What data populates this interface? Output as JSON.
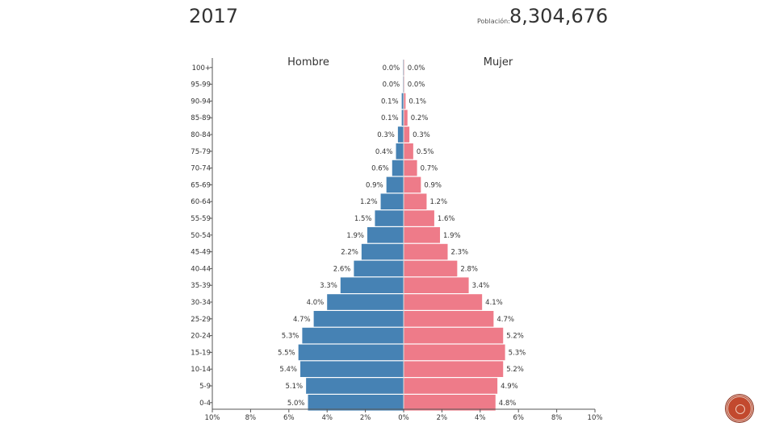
{
  "header": {
    "year": "2017",
    "population_label": "Población:",
    "population_value": "8,304,676"
  },
  "colors": {
    "male": "#4682b4",
    "female": "#ee7b89",
    "axis": "#555555",
    "text": "#333333",
    "badge": "#c2492e"
  },
  "badge": {
    "icon": "logo-seal-icon"
  },
  "chart_data": {
    "type": "bar",
    "subtype": "population-pyramid",
    "left_label": "Hombre",
    "right_label": "Mujer",
    "categories": [
      "100+",
      "95-99",
      "90-94",
      "85-89",
      "80-84",
      "75-79",
      "70-74",
      "65-69",
      "60-64",
      "55-59",
      "50-54",
      "45-49",
      "40-44",
      "35-39",
      "30-34",
      "25-29",
      "20-24",
      "15-19",
      "10-14",
      "5-9",
      "0-4"
    ],
    "series": [
      {
        "name": "Hombre",
        "values": [
          0.0,
          0.0,
          0.1,
          0.1,
          0.3,
          0.4,
          0.6,
          0.9,
          1.2,
          1.5,
          1.9,
          2.2,
          2.6,
          3.3,
          4.0,
          4.7,
          5.3,
          5.5,
          5.4,
          5.1,
          5.0
        ],
        "labels": [
          "0.0%",
          "0.0%",
          "0.1%",
          "0.1%",
          "0.3%",
          "0.4%",
          "0.6%",
          "0.9%",
          "1.2%",
          "1.5%",
          "1.9%",
          "2.2%",
          "2.6%",
          "3.3%",
          "4.0%",
          "4.7%",
          "5.3%",
          "5.5%",
          "5.4%",
          "5.1%",
          "5.0%"
        ]
      },
      {
        "name": "Mujer",
        "values": [
          0.0,
          0.0,
          0.1,
          0.2,
          0.3,
          0.5,
          0.7,
          0.9,
          1.2,
          1.6,
          1.9,
          2.3,
          2.8,
          3.4,
          4.1,
          4.7,
          5.2,
          5.3,
          5.2,
          4.9,
          4.8
        ],
        "labels": [
          "0.0%",
          "0.0%",
          "0.1%",
          "0.2%",
          "0.3%",
          "0.5%",
          "0.7%",
          "0.9%",
          "1.2%",
          "1.6%",
          "1.9%",
          "2.3%",
          "2.8%",
          "3.4%",
          "4.1%",
          "4.7%",
          "5.2%",
          "5.3%",
          "5.2%",
          "4.9%",
          "4.8%"
        ]
      }
    ],
    "xlim": [
      -10,
      10
    ],
    "x_ticks": [
      -10,
      -8,
      -6,
      -4,
      -2,
      0,
      2,
      4,
      6,
      8,
      10
    ],
    "x_tick_labels": [
      "10%",
      "8%",
      "6%",
      "4%",
      "2%",
      "0%",
      "2%",
      "4%",
      "6%",
      "8%",
      "10%"
    ],
    "grid": false
  }
}
